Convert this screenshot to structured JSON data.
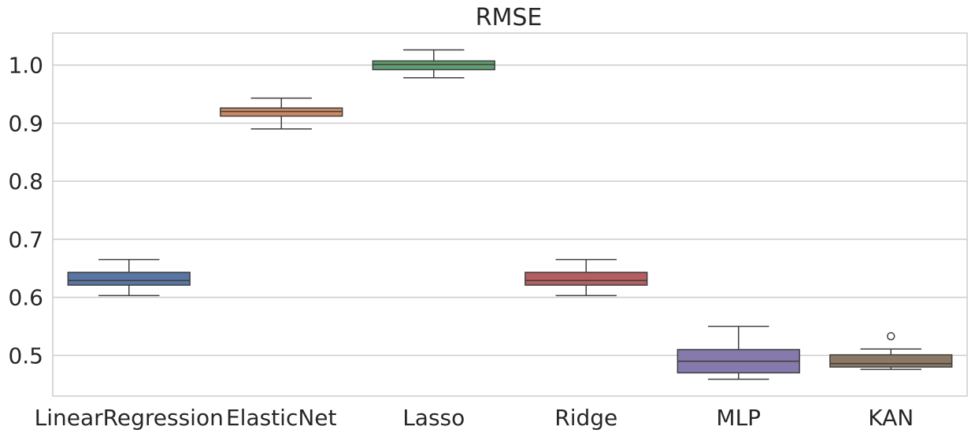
{
  "chart_data": {
    "type": "box",
    "title": "RMSE",
    "xlabel": "",
    "ylabel": "",
    "ylim": [
      0.43,
      1.055
    ],
    "yticks": [
      0.5,
      0.6,
      0.7,
      0.8,
      0.9,
      1.0
    ],
    "ytick_labels": [
      "0.5",
      "0.6",
      "0.7",
      "0.8",
      "0.9",
      "1.0"
    ],
    "grid": "horizontal",
    "categories": [
      "LinearRegression",
      "ElasticNet",
      "Lasso",
      "Ridge",
      "MLP",
      "KAN"
    ],
    "boxes": [
      {
        "category": "LinearRegression",
        "whisker_low": 0.603,
        "q1": 0.621,
        "median": 0.629,
        "q3": 0.643,
        "whisker_high": 0.665,
        "outliers": [],
        "color": "#5975a4"
      },
      {
        "category": "ElasticNet",
        "whisker_low": 0.89,
        "q1": 0.912,
        "median": 0.92,
        "q3": 0.926,
        "whisker_high": 0.943,
        "outliers": [],
        "color": "#cc8963"
      },
      {
        "category": "Lasso",
        "whisker_low": 0.978,
        "q1": 0.992,
        "median": 1.001,
        "q3": 1.007,
        "whisker_high": 1.026,
        "outliers": [],
        "color": "#5f9e6e"
      },
      {
        "category": "Ridge",
        "whisker_low": 0.603,
        "q1": 0.621,
        "median": 0.629,
        "q3": 0.643,
        "whisker_high": 0.665,
        "outliers": [],
        "color": "#b55d60"
      },
      {
        "category": "MLP",
        "whisker_low": 0.459,
        "q1": 0.47,
        "median": 0.49,
        "q3": 0.51,
        "whisker_high": 0.55,
        "outliers": [],
        "color": "#857aab"
      },
      {
        "category": "KAN",
        "whisker_low": 0.476,
        "q1": 0.48,
        "median": 0.486,
        "q3": 0.501,
        "whisker_high": 0.511,
        "outliers": [
          0.533
        ],
        "color": "#8d7866"
      }
    ]
  }
}
